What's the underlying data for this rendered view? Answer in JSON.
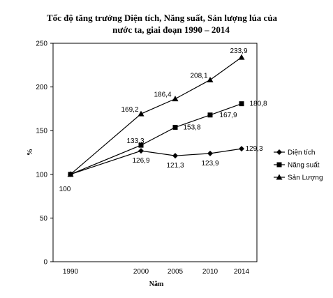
{
  "chart_data": {
    "type": "line",
    "title_lines": [
      "Tốc độ tăng trưởng Diện tích, Năng suất, Sản lượng lúa của",
      "nước ta, giai đoạn 1990 – 2014"
    ],
    "xlabel": "Năm",
    "ylabel": "%",
    "x": [
      "1990",
      "2000",
      "2005",
      "2010",
      "2014"
    ],
    "ylim": [
      0,
      250
    ],
    "yticks": [
      "0",
      "50",
      "100",
      "150",
      "200",
      "250"
    ],
    "grid": false,
    "legend_position": "right",
    "start_label": "100",
    "series": [
      {
        "name": "Diện tích",
        "marker": "diamond",
        "values": [
          100,
          126.9,
          121.3,
          123.9,
          129.3
        ],
        "labels": [
          "",
          "126,9",
          "121,3",
          "123,9",
          "129,3"
        ]
      },
      {
        "name": "Năng suất",
        "marker": "square",
        "values": [
          100,
          133.3,
          153.8,
          167.9,
          180.8
        ],
        "labels": [
          "",
          "133,3",
          "153,8",
          "167,9",
          "180,8"
        ]
      },
      {
        "name": "Sản Lượng",
        "marker": "triangle",
        "values": [
          100,
          169.2,
          186.4,
          208.1,
          233.9
        ],
        "labels": [
          "",
          "169,2",
          "186,4",
          "208,1",
          "233,9"
        ]
      }
    ],
    "color": "#000000"
  }
}
